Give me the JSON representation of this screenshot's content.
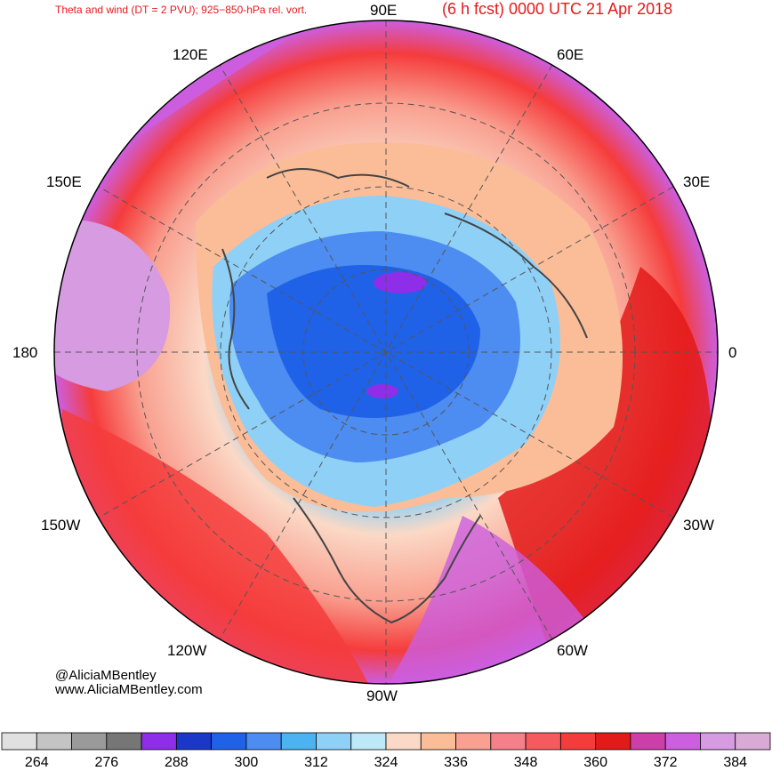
{
  "title_left": "Theta and wind (DT = 2 PVU); 925−850-hPa rel. vort.",
  "title_right": "(6 h fcst) 0000 UTC 21 Apr 2018",
  "credit": {
    "handle": "@AliciaMBentley",
    "site": "www.AliciaMBentley.com"
  },
  "longitude_labels": {
    "lon_90e": "90E",
    "lon_60e": "60E",
    "lon_30e": "30E",
    "lon_0": "0",
    "lon_30w": "30W",
    "lon_60w": "60W",
    "lon_90w": "90W",
    "lon_120w": "120W",
    "lon_150w": "150W",
    "lon_180": "180",
    "lon_150e": "150E",
    "lon_120e": "120E"
  },
  "colorbar": {
    "colors": [
      "#e0e0e0",
      "#c4c4c4",
      "#9a9a9a",
      "#767676",
      "#8e2ee8",
      "#1a37c8",
      "#1f62e8",
      "#4d8cf0",
      "#4ab3f0",
      "#8fd0f7",
      "#bde8f7",
      "#fbd9c6",
      "#fbbd98",
      "#f9a090",
      "#f6808a",
      "#f55a5e",
      "#f53c3c",
      "#e31a1a",
      "#cc3fa8",
      "#cc5ee0",
      "#d69be0",
      "#d9aad5"
    ],
    "labels": [
      "264",
      "276",
      "288",
      "300",
      "312",
      "324",
      "336",
      "348",
      "360",
      "372",
      "384"
    ]
  }
}
